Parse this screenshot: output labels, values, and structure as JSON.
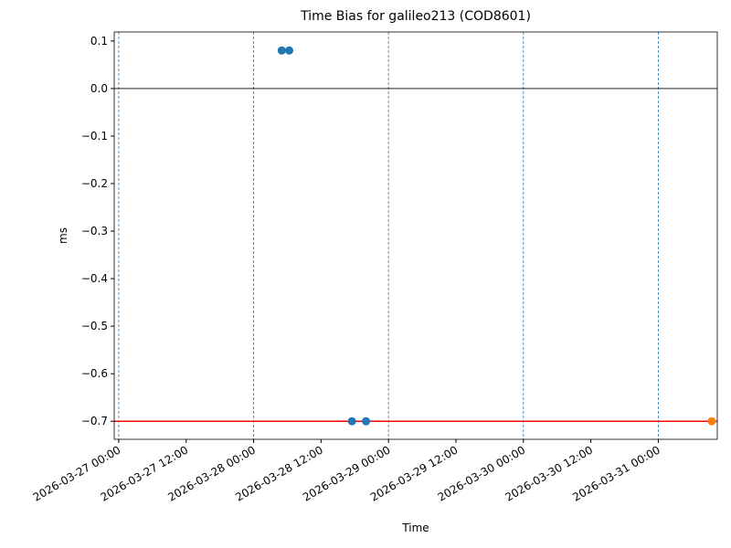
{
  "chart_data": {
    "type": "scatter",
    "title": "Time Bias for galileo213 (COD8601)",
    "x_label": "Time",
    "y_label": "ms",
    "xlim": [
      "2026-03-26 23:12",
      "2026-03-31 10:30"
    ],
    "xticks": [
      "2026-03-27 00:00",
      "2026-03-27 12:00",
      "2026-03-28 00:00",
      "2026-03-28 12:00",
      "2026-03-29 00:00",
      "2026-03-29 12:00",
      "2026-03-30 00:00",
      "2026-03-30 12:00",
      "2026-03-31 00:00"
    ],
    "ylim": [
      -0.738,
      0.119
    ],
    "yticks": [
      0.1,
      {
        "value": 0,
        "label": "0.0"
      },
      {
        "value": -0.1,
        "label": "−0.1"
      },
      {
        "value": -0.2,
        "label": "−0.2"
      },
      {
        "value": -0.3,
        "label": "−0.3"
      },
      {
        "value": -0.4,
        "label": "−0.4"
      },
      {
        "value": -0.5,
        "label": "−0.5"
      },
      {
        "value": -0.6,
        "label": "−0.6"
      },
      {
        "value": -0.7,
        "label": "−0.7"
      }
    ],
    "vlines": {
      "color": "#1f77b4",
      "x": [
        "2026-03-27 00:00",
        "2026-03-28 00:00",
        "2026-03-29 00:00",
        "2026-03-30 00:00",
        "2026-03-31 00:00"
      ]
    },
    "hlines": [
      {
        "y": 0,
        "color": "#000000"
      },
      {
        "y": -0.7,
        "color": "#ff0000"
      }
    ],
    "series": [
      {
        "color": "#1f77b4",
        "x": [
          "2026-03-28 05:00",
          "2026-03-28 06:20",
          "2026-03-28 17:30",
          "2026-03-28 20:00"
        ],
        "values": [
          0.08,
          0.08,
          -0.7,
          -0.7
        ]
      },
      {
        "color": "#ff7f0e",
        "x": [
          "2026-03-31 09:30"
        ],
        "values": [
          -0.7
        ]
      }
    ]
  }
}
